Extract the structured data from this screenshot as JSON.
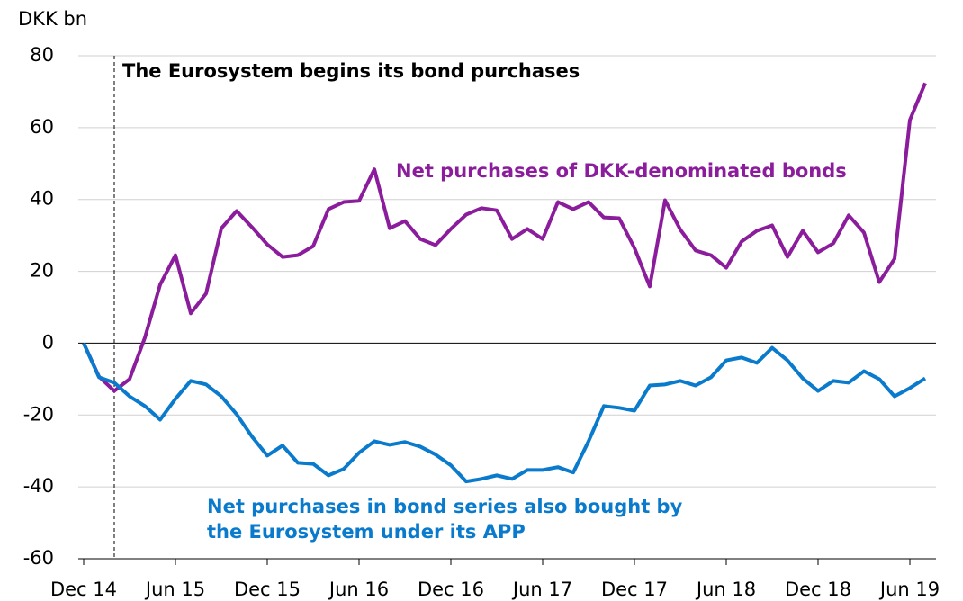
{
  "chart_data": {
    "type": "line",
    "y_label": "DKK bn",
    "annotation": "The Eurosystem begins its bond purchases",
    "annotation_index": 2,
    "categories": [
      "Dec 14",
      null,
      null,
      null,
      null,
      null,
      "Jun 15",
      null,
      null,
      null,
      null,
      null,
      "Dec 15",
      null,
      null,
      null,
      null,
      null,
      "Jun 16",
      null,
      null,
      null,
      null,
      null,
      "Dec 16",
      null,
      null,
      null,
      null,
      null,
      "Jun 17",
      null,
      null,
      null,
      null,
      null,
      "Dec 17",
      null,
      null,
      null,
      null,
      null,
      "Jun 18",
      null,
      null,
      null,
      null,
      null,
      "Dec 18",
      null,
      null,
      null,
      null,
      null,
      "Jun 19",
      null
    ],
    "series": [
      {
        "name": "Net purchases of DKK-denominated bonds",
        "color": "#8b1d9c",
        "values": [
          0,
          -9.3,
          -13.3,
          -10,
          1.5,
          16.3,
          24.5,
          8.3,
          13.8,
          32,
          36.8,
          32.3,
          27.5,
          24,
          24.5,
          27,
          37.3,
          39.3,
          39.6,
          48.4,
          32,
          34,
          29,
          27.3,
          31.8,
          35.8,
          37.6,
          37,
          29,
          31.8,
          29,
          39.3,
          37.3,
          39.3,
          35,
          34.8,
          26.5,
          15.8,
          39.8,
          31.6,
          25.8,
          24.5,
          21,
          28.3,
          31.3,
          32.8,
          24,
          31.3,
          25.3,
          27.8,
          35.6,
          30.8,
          17,
          23.5,
          62.1,
          72.4
        ]
      },
      {
        "name": "Net purchases in bond series also bought by\nthe Eurosystem under its APP",
        "color": "#0a7bcc",
        "values": [
          0,
          -9.5,
          -11,
          -14.8,
          -17.5,
          -21.3,
          -15.5,
          -10.5,
          -11.5,
          -14.8,
          -19.8,
          -26,
          -31.3,
          -28.5,
          -33.3,
          -33.6,
          -36.8,
          -35,
          -30.5,
          -27.3,
          -28.3,
          -27.5,
          -28.8,
          -31,
          -34,
          -38.5,
          -37.8,
          -36.8,
          -37.8,
          -35.3,
          -35.3,
          -34.5,
          -36,
          -27.3,
          -17.5,
          -18,
          -18.8,
          -11.8,
          -11.5,
          -10.5,
          -11.8,
          -9.5,
          -4.8,
          -4,
          -5.5,
          -1.3,
          -4.8,
          -9.8,
          -13.3,
          -10.5,
          -11,
          -7.8,
          -10,
          -14.8,
          -12.5,
          -9.8
        ]
      }
    ],
    "ylim": [
      -60,
      80
    ],
    "yticks": [
      -60,
      -40,
      -20,
      0,
      20,
      40,
      60,
      80
    ],
    "grid": true
  }
}
